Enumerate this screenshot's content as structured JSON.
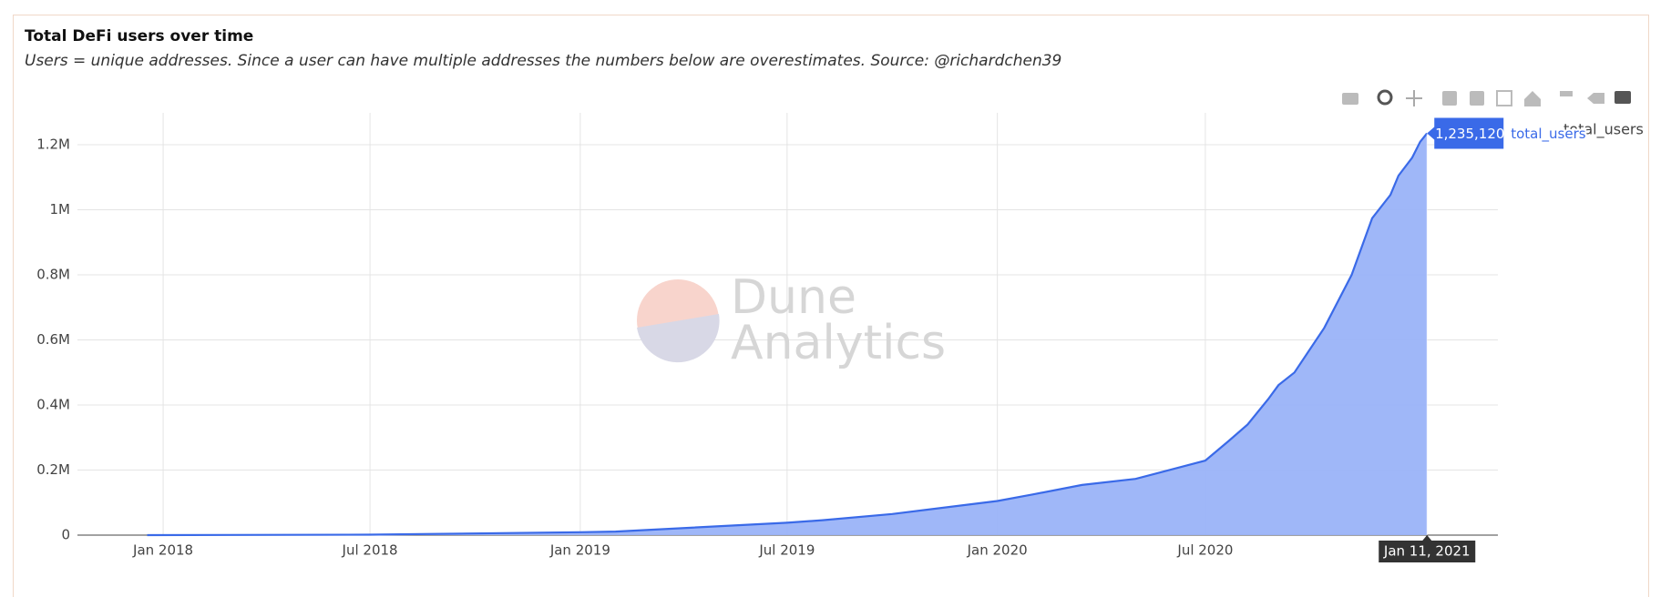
{
  "chart_data": {
    "type": "area",
    "title": "Total DeFi users over time",
    "subtitle": "Users = unique addresses. Since a user can have multiple addresses the numbers below are overestimates. Source: @richardchen39",
    "watermark": {
      "line1": "Dune",
      "line2": "Analytics"
    },
    "x": [
      "2017-12-18",
      "2018-07-01",
      "2019-01-01",
      "2019-02-01",
      "2019-07-01",
      "2019-08-01",
      "2019-10-01",
      "2020-01-01",
      "2020-02-01",
      "2020-03-15",
      "2020-05-01",
      "2020-07-01",
      "2020-07-21",
      "2020-08-07",
      "2020-08-25",
      "2020-09-03",
      "2020-09-17",
      "2020-10-13",
      "2020-11-06",
      "2020-11-24",
      "2020-12-10",
      "2020-12-17",
      "2020-12-29",
      "2021-01-05",
      "2021-01-11"
    ],
    "series": [
      {
        "name": "total_users",
        "color": "#3a6ae8",
        "fill": "#9ab3f8",
        "values": [
          0,
          1500,
          9000,
          11000,
          38000,
          46000,
          65000,
          105000,
          125000,
          154000,
          173000,
          229000,
          288000,
          340000,
          418000,
          461000,
          500000,
          637000,
          800000,
          974000,
          1046000,
          1105000,
          1160000,
          1209000,
          1235120
        ]
      }
    ],
    "xlim": [
      "2017-10-18",
      "2021-03-14"
    ],
    "xticks": [
      {
        "value": "2018-01-01",
        "label": "Jan 2018"
      },
      {
        "value": "2018-07-01",
        "label": "Jul 2018"
      },
      {
        "value": "2019-01-01",
        "label": "Jan 2019"
      },
      {
        "value": "2019-07-01",
        "label": "Jul 2019"
      },
      {
        "value": "2020-01-01",
        "label": "Jan 2020"
      },
      {
        "value": "2020-07-01",
        "label": "Jul 2020"
      }
    ],
    "ylim": [
      0,
      1298000
    ],
    "yticks": [
      0,
      {
        "value": 200000,
        "label": "0.2M"
      },
      {
        "value": 400000,
        "label": "0.4M"
      },
      {
        "value": 600000,
        "label": "0.6M"
      },
      {
        "value": 800000,
        "label": "0.8M"
      },
      {
        "value": 1000000,
        "label": "1M"
      },
      {
        "value": 1200000,
        "label": "1.2M"
      }
    ],
    "grid": true,
    "legend": "top-right",
    "hover": {
      "x_label": "Jan 11, 2021",
      "value": 1235120,
      "value_label": "1,235,120"
    }
  }
}
